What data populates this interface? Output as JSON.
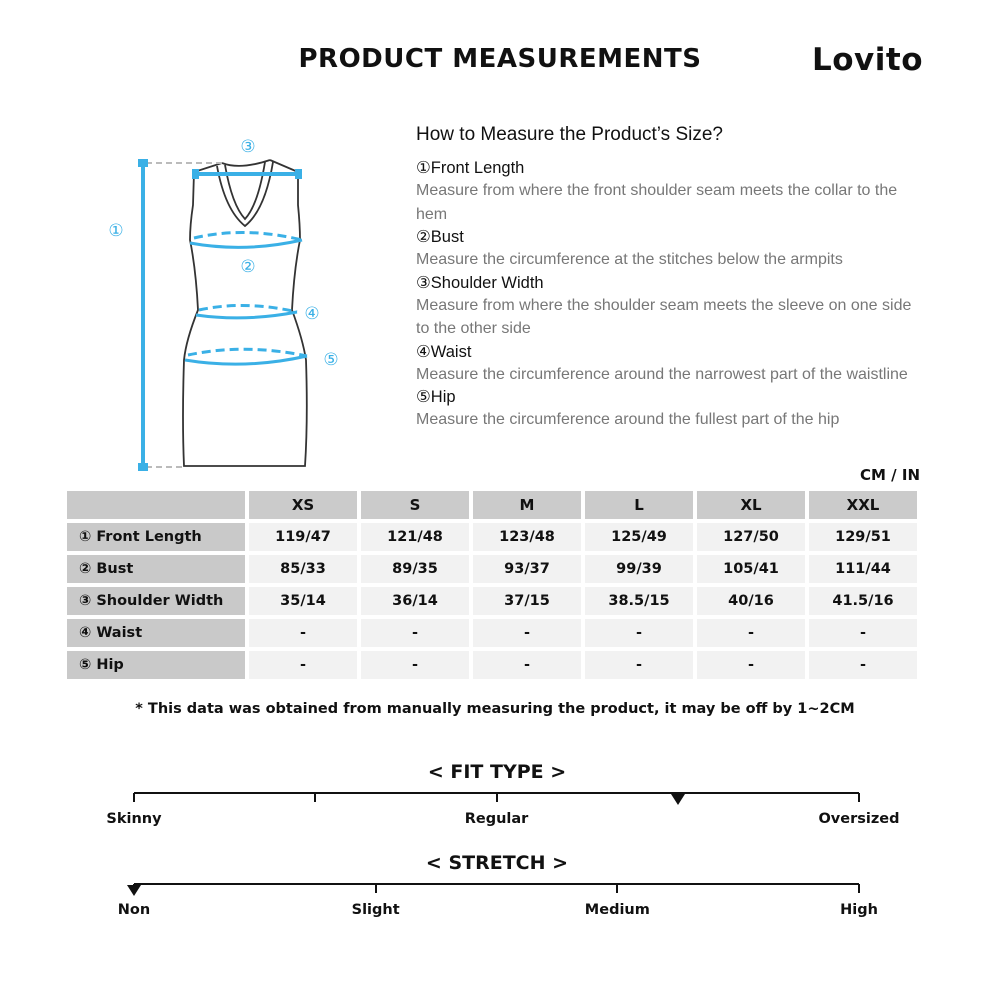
{
  "header": {
    "title": "PRODUCT MEASUREMENTS",
    "brand": "Lovito"
  },
  "diagram": {
    "markers": [
      "①",
      "②",
      "③",
      "④",
      "⑤"
    ],
    "accent": "#3ab0e6"
  },
  "guide": {
    "title": "How to Measure the Product’s Size?",
    "steps": [
      {
        "title": "①Front Length",
        "desc": "Measure from where the front shoulder seam meets the collar to the hem"
      },
      {
        "title": "②Bust",
        "desc": "Measure the circumference at the stitches below the armpits"
      },
      {
        "title": "③Shoulder Width",
        "desc": "Measure from where the shoulder seam meets the sleeve on one side to the other side"
      },
      {
        "title": "④Waist",
        "desc": "Measure the circumference around the narrowest part of the waistline"
      },
      {
        "title": "⑤Hip",
        "desc": "Measure the circumference around the fullest part of the hip"
      }
    ]
  },
  "table": {
    "unit": "CM / IN",
    "sizes": [
      "XS",
      "S",
      "M",
      "L",
      "XL",
      "XXL"
    ],
    "rows": [
      {
        "label": "① Front Length",
        "values": [
          "119/47",
          "121/48",
          "123/48",
          "125/49",
          "127/50",
          "129/51"
        ]
      },
      {
        "label": "② Bust",
        "values": [
          "85/33",
          "89/35",
          "93/37",
          "99/39",
          "105/41",
          "111/44"
        ]
      },
      {
        "label": "③ Shoulder Width",
        "values": [
          "35/14",
          "36/14",
          "37/15",
          "38.5/15",
          "40/16",
          "41.5/16"
        ]
      },
      {
        "label": "④ Waist",
        "values": [
          "-",
          "-",
          "-",
          "-",
          "-",
          "-"
        ]
      },
      {
        "label": "⑤ Hip",
        "values": [
          "-",
          "-",
          "-",
          "-",
          "-",
          "-"
        ]
      }
    ]
  },
  "note": "* This data was obtained from manually measuring the product, it may be off by 1~2CM",
  "fit": {
    "title": "< FIT TYPE >",
    "labels": [
      "Skinny",
      "Regular",
      "Oversized"
    ],
    "level": 0.75
  },
  "stretch": {
    "title": "< STRETCH >",
    "labels": [
      "Non",
      "Slight",
      "Medium",
      "High"
    ],
    "level": 0
  }
}
